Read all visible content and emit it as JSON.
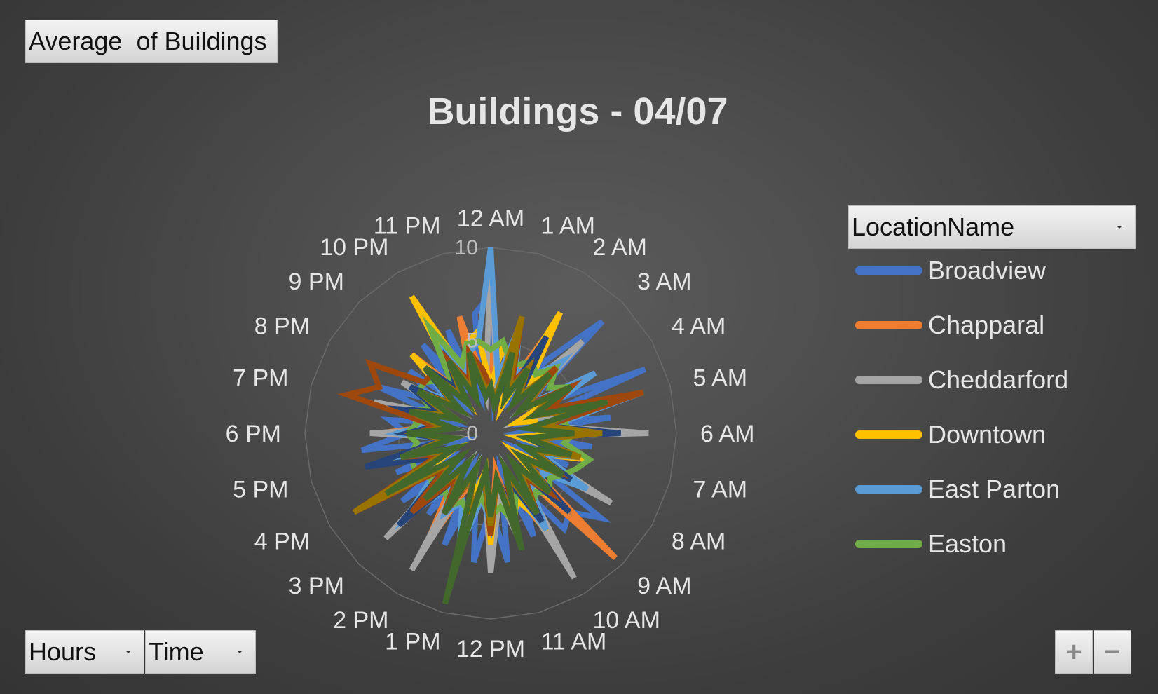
{
  "pivot_buttons": {
    "values_label": "Average  of Buildings",
    "axis_fields": [
      {
        "label": "Hours"
      },
      {
        "label": "Time"
      }
    ],
    "legend_field_label": "LocationName",
    "zoom_in": "+",
    "zoom_out": "−"
  },
  "chart_data": {
    "type": "radar",
    "title": "Buildings - 04/07",
    "categories": [
      "12 AM",
      "1 AM",
      "2 AM",
      "3 AM",
      "4 AM",
      "5 AM",
      "6 AM",
      "7 AM",
      "8 AM",
      "9 AM",
      "10 AM",
      "11 AM",
      "12 PM",
      "1 PM",
      "2 PM",
      "3 PM",
      "4 PM",
      "5 PM",
      "6 PM",
      "7 PM",
      "8 PM",
      "9 PM",
      "10 PM",
      "11 PM"
    ],
    "r_range": [
      0,
      10
    ],
    "r_ticks": [
      0,
      5,
      10
    ],
    "series": [
      {
        "name": "Broadview",
        "color": "#4472C4",
        "legend": true,
        "points": [
          7.5,
          1.5,
          5.5,
          3.5,
          2.0,
          5.0,
          8.5,
          2.5,
          3.0,
          9.0,
          2.0,
          6.5,
          1.5,
          5.5,
          2.0,
          4.5,
          1.5,
          7.5,
          6.0,
          6.5,
          3.5,
          6.0,
          2.0,
          7.0,
          4.0,
          7.0,
          3.0,
          6.5,
          2.0,
          5.5,
          2.5,
          6.0,
          2.5,
          5.5,
          1.5,
          7.0,
          4.5,
          5.5,
          2.0,
          6.5,
          3.5,
          5.5,
          2.0,
          6.0,
          3.0,
          6.0,
          2.0,
          6.5
        ]
      },
      {
        "name": "Chapparal",
        "color": "#ED7D31",
        "legend": true,
        "points": [
          4.0,
          2.0,
          6.0,
          3.0,
          6.5,
          3.5,
          6.0,
          2.0,
          4.0,
          2.5,
          7.5,
          3.0,
          6.0,
          2.0,
          3.5,
          2.5,
          5.5,
          2.0,
          9.5,
          3.0,
          6.5,
          3.5,
          5.0,
          2.0,
          6.5,
          2.0,
          4.0,
          3.0,
          7.0,
          3.5,
          5.5,
          3.0,
          4.5,
          2.5,
          6.5,
          2.0,
          6.0,
          3.0,
          5.0,
          2.5,
          4.5,
          2.0,
          6.0,
          3.0,
          5.5,
          2.5,
          6.5,
          3.0
        ]
      },
      {
        "name": "Cheddarford",
        "color": "#A5A5A5",
        "legend": true,
        "points": [
          10.0,
          2.5,
          5.5,
          2.0,
          5.5,
          3.0,
          7.0,
          2.0,
          5.0,
          1.5,
          5.0,
          3.0,
          8.5,
          1.5,
          4.0,
          2.5,
          7.5,
          2.0,
          5.0,
          2.5,
          9.0,
          2.0,
          6.0,
          3.5,
          7.5,
          2.5,
          6.0,
          2.0,
          8.5,
          2.0,
          8.0,
          2.5,
          7.5,
          3.0,
          5.5,
          2.0,
          6.5,
          2.0,
          6.5,
          2.5,
          5.5,
          2.0,
          5.5,
          2.5,
          4.5,
          2.5,
          5.0,
          2.0
        ]
      },
      {
        "name": "Downtown",
        "color": "#FFC000",
        "legend": true,
        "points": [
          2.5,
          4.5,
          4.0,
          1.5,
          7.5,
          3.5,
          4.5,
          2.0,
          4.5,
          1.5,
          2.5,
          2.5,
          3.5,
          1.5,
          5.5,
          3.0,
          4.5,
          1.5,
          6.0,
          3.0,
          5.5,
          4.0,
          4.5,
          2.5,
          6.0,
          2.0,
          3.5,
          2.5,
          4.5,
          3.5,
          6.0,
          3.0,
          4.0,
          2.0,
          6.5,
          2.5,
          4.5,
          2.5,
          4.5,
          2.0,
          4.5,
          2.5,
          6.0,
          2.0,
          8.5,
          3.5,
          5.0,
          5.5
        ]
      },
      {
        "name": "East Parton",
        "color": "#5B9BD5",
        "legend": true,
        "points": [
          10.0,
          3.0,
          6.0,
          3.5,
          4.0,
          4.0,
          5.5,
          2.5,
          6.5,
          3.0,
          8.5,
          3.5,
          4.5,
          2.0,
          5.0,
          3.0,
          6.0,
          3.5,
          4.0,
          3.5,
          6.0,
          3.0,
          4.5,
          2.5,
          5.0,
          3.5,
          6.5,
          4.0,
          5.0,
          3.5,
          6.5,
          4.0,
          4.5,
          3.5,
          5.0,
          2.5,
          5.0,
          3.5,
          4.5,
          2.5,
          5.0,
          3.0,
          5.0,
          2.5,
          5.5,
          3.5,
          4.5,
          5.0
        ]
      },
      {
        "name": "Easton",
        "color": "#70AD47",
        "legend": true,
        "points": [
          4.5,
          5.0,
          4.0,
          4.0,
          4.5,
          4.0,
          5.0,
          4.0,
          5.0,
          3.5,
          4.5,
          4.0,
          4.5,
          4.0,
          5.5,
          5.0,
          4.5,
          4.0,
          4.5,
          4.0,
          4.5,
          3.5,
          5.0,
          4.0,
          4.5,
          3.5,
          4.5,
          4.0,
          4.5,
          4.0,
          4.5,
          4.0,
          4.5,
          4.5,
          4.5,
          4.0,
          4.5,
          4.0,
          4.5,
          3.5,
          4.5,
          4.5,
          4.0,
          3.5,
          6.5,
          4.0,
          5.0,
          5.0
        ]
      },
      {
        "name": "",
        "color": "#264478",
        "legend": false,
        "points": [
          2.5,
          1.5,
          3.5,
          2.0,
          6.0,
          2.5,
          4.5,
          2.0,
          5.0,
          2.5,
          5.0,
          3.0,
          7.0,
          2.0,
          3.5,
          2.5,
          5.0,
          2.0,
          6.0,
          2.5,
          5.5,
          3.0,
          4.0,
          2.5,
          5.5,
          2.5,
          4.5,
          2.5,
          5.0,
          3.0,
          7.0,
          3.0,
          5.0,
          3.5,
          7.0,
          2.5,
          4.5,
          3.0,
          5.0,
          3.0,
          5.0,
          2.5,
          5.0,
          3.0,
          4.5,
          2.5,
          4.0,
          2.0
        ]
      },
      {
        "name": "",
        "color": "#9E480E",
        "legend": false,
        "points": [
          2.5,
          1.5,
          6.5,
          3.0,
          4.0,
          2.0,
          5.0,
          2.5,
          5.0,
          3.5,
          8.5,
          3.0,
          4.0,
          2.5,
          5.0,
          2.5,
          4.0,
          2.0,
          4.5,
          3.0,
          5.0,
          2.0,
          5.0,
          2.5,
          5.5,
          2.5,
          4.5,
          2.5,
          5.0,
          3.0,
          6.0,
          3.0,
          8.5,
          3.0,
          5.0,
          2.5,
          4.0,
          3.0,
          8.0,
          6.5,
          7.5,
          4.5,
          4.5,
          2.5,
          4.5,
          3.0,
          4.5,
          3.5
        ]
      },
      {
        "name": "",
        "color": "#636363",
        "legend": false,
        "points": [
          2.5,
          2.0,
          4.5,
          2.5,
          4.0,
          2.5,
          4.5,
          2.5,
          4.0,
          2.5,
          5.0,
          3.0,
          5.0,
          2.5,
          5.0,
          2.5,
          4.5,
          2.5,
          4.5,
          2.5,
          5.0,
          2.5,
          4.5,
          2.5,
          5.0,
          2.5,
          5.0,
          2.5,
          4.5,
          2.5,
          4.5,
          2.5,
          4.5,
          2.5,
          5.0,
          2.5,
          4.0,
          2.5,
          4.5,
          2.5,
          4.5,
          2.5,
          4.5,
          2.5,
          4.5,
          2.5,
          4.5,
          2.5
        ]
      },
      {
        "name": "",
        "color": "#997300",
        "legend": false,
        "points": [
          2.5,
          2.0,
          6.5,
          2.5,
          4.0,
          2.5,
          4.5,
          2.5,
          3.5,
          2.5,
          4.5,
          3.0,
          6.0,
          2.5,
          5.0,
          2.5,
          4.5,
          2.5,
          4.5,
          2.5,
          5.0,
          2.5,
          5.0,
          2.5,
          5.0,
          2.5,
          4.5,
          2.5,
          4.5,
          2.5,
          4.5,
          2.5,
          8.5,
          2.5,
          4.5,
          2.5,
          4.0,
          2.5,
          4.5,
          2.5,
          4.5,
          2.5,
          4.5,
          2.5,
          4.5,
          2.5,
          4.5,
          2.5
        ]
      },
      {
        "name": "",
        "color": "#43682B",
        "legend": false,
        "points": [
          2.5,
          1.5,
          4.5,
          2.0,
          4.0,
          2.0,
          4.5,
          2.0,
          5.0,
          2.5,
          6.5,
          2.0,
          4.5,
          2.0,
          4.5,
          2.0,
          4.5,
          2.0,
          4.5,
          2.0,
          5.0,
          2.0,
          6.5,
          2.5,
          4.5,
          2.0,
          9.5,
          2.0,
          5.0,
          2.0,
          5.0,
          2.0,
          6.5,
          2.0,
          5.0,
          2.0,
          4.5,
          2.0,
          4.5,
          2.0,
          4.5,
          2.0,
          5.0,
          2.0,
          4.5,
          2.0,
          4.5,
          2.0
        ]
      }
    ]
  }
}
